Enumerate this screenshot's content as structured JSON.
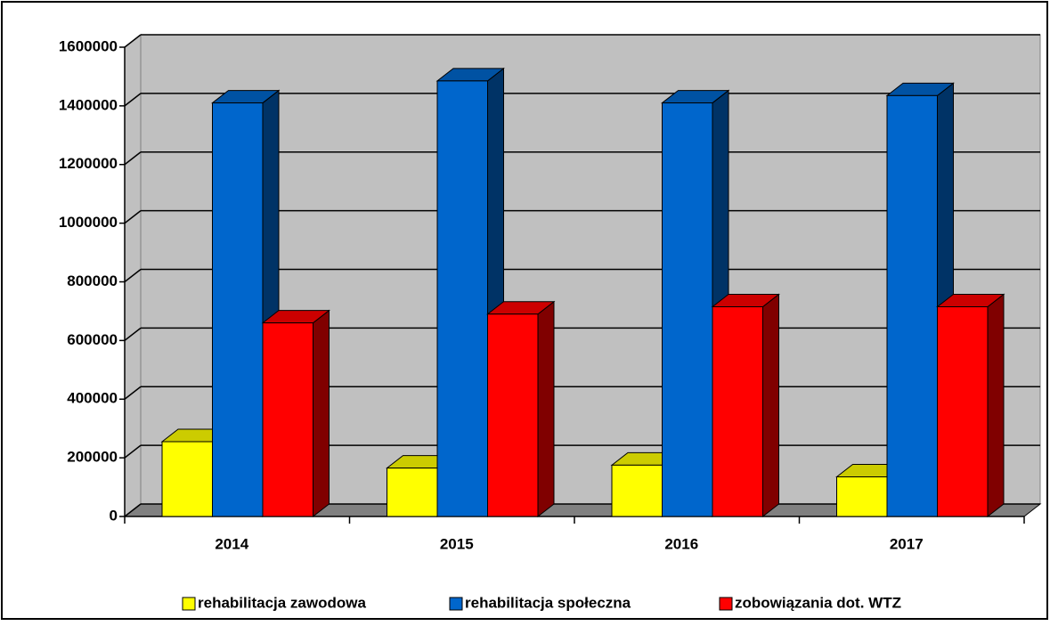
{
  "chart_data": {
    "type": "bar3d",
    "categories": [
      "2014",
      "2015",
      "2016",
      "2017"
    ],
    "series": [
      {
        "name": "rehabilitacja zawodowa",
        "color": "#ffff00",
        "values": [
          255000,
          165000,
          175000,
          135000
        ]
      },
      {
        "name": "rehabilitacja społeczna",
        "color": "#0066cc",
        "values": [
          1410000,
          1485000,
          1410000,
          1435000
        ]
      },
      {
        "name": "zobowiązania dot. WTZ",
        "color": "#ff0000",
        "values": [
          660000,
          690000,
          715000,
          715000
        ]
      }
    ],
    "ylim": [
      0,
      1600000
    ],
    "yticks": [
      0,
      200000,
      400000,
      600000,
      800000,
      1000000,
      1200000,
      1400000,
      1600000
    ],
    "grid": true,
    "legend": "bottom"
  }
}
